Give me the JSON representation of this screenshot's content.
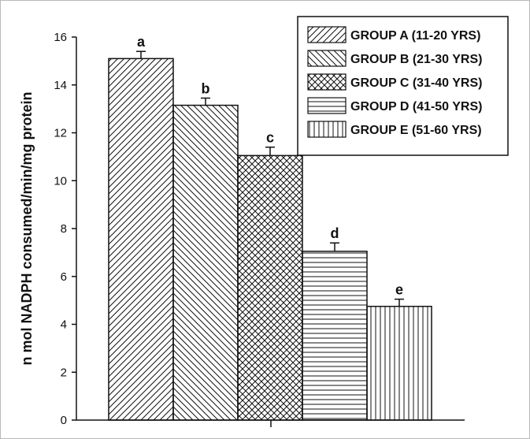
{
  "chart_data": {
    "type": "bar",
    "ylabel": "n mol NADPH consumed/min/mg protein",
    "xlabel": "",
    "ylim": [
      0,
      16
    ],
    "yticks": [
      "0",
      "2",
      "4",
      "6",
      "8",
      "10",
      "12",
      "14",
      "16"
    ],
    "grid": false,
    "legend_position": "top-right",
    "series": [
      {
        "name": "GROUP A (11-20 YRS)",
        "value": 15.1,
        "error": 0.3,
        "label": "a",
        "pattern": "diag-up"
      },
      {
        "name": "GROUP B (21-30 YRS)",
        "value": 13.15,
        "error": 0.3,
        "label": "b",
        "pattern": "diag-down"
      },
      {
        "name": "GROUP C (31-40 YRS)",
        "value": 11.05,
        "error": 0.35,
        "label": "c",
        "pattern": "crosshatch"
      },
      {
        "name": "GROUP D (41-50 YRS)",
        "value": 7.05,
        "error": 0.35,
        "label": "d",
        "pattern": "horizontal"
      },
      {
        "name": "GROUP E (51-60 YRS)",
        "value": 4.75,
        "error": 0.3,
        "label": "e",
        "pattern": "vertical"
      }
    ],
    "colors": {
      "ink": "#111111",
      "background": "#ffffff"
    }
  }
}
